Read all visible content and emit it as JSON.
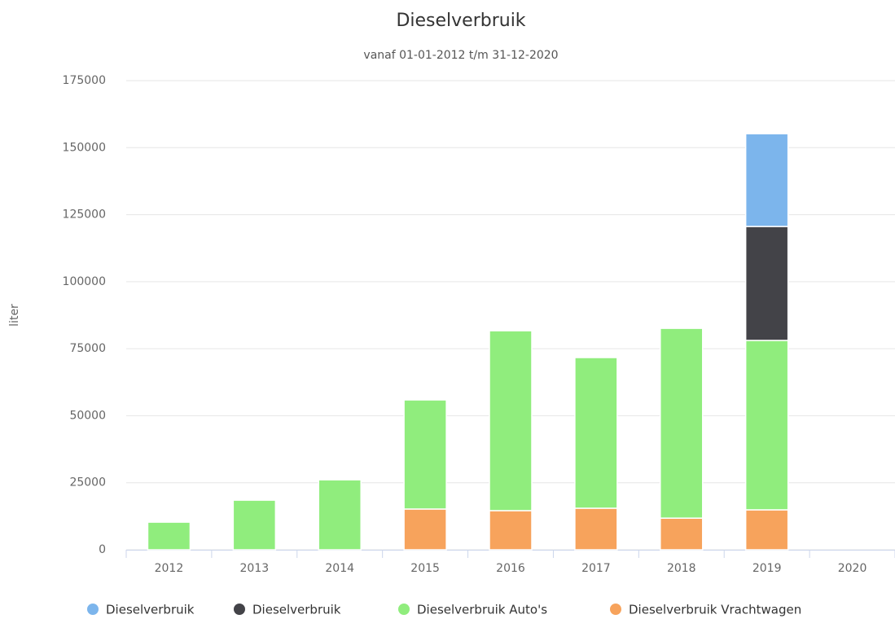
{
  "chart_data": {
    "type": "bar",
    "stacked": true,
    "title": "Dieselverbruik",
    "subtitle": "vanaf 01-01-2012 t/m 31-12-2020",
    "y_label": "liter",
    "categories": [
      "2012",
      "2013",
      "2014",
      "2015",
      "2016",
      "2017",
      "2018",
      "2019",
      "2020"
    ],
    "series": [
      {
        "name": "Dieselverbruik",
        "color": "#7cb5ec",
        "values": [
          null,
          null,
          null,
          null,
          null,
          null,
          null,
          34600,
          null
        ]
      },
      {
        "name": "Dieselverbruik",
        "color": "#434348",
        "values": [
          null,
          null,
          null,
          null,
          null,
          null,
          null,
          42500,
          null
        ]
      },
      {
        "name": "Dieselverbruik Auto's",
        "color": "#90ed7d",
        "values": [
          10300,
          18500,
          26100,
          40700,
          67100,
          56200,
          70800,
          63200,
          null
        ]
      },
      {
        "name": "Dieselverbruik Vrachtwagen",
        "color": "#f7a35c",
        "values": [
          null,
          null,
          null,
          15200,
          14600,
          15500,
          11800,
          14900,
          null
        ]
      }
    ],
    "ylim": [
      0,
      175000
    ],
    "yticks": [
      0,
      25000,
      50000,
      75000,
      100000,
      125000,
      150000,
      175000
    ],
    "grid": true
  }
}
